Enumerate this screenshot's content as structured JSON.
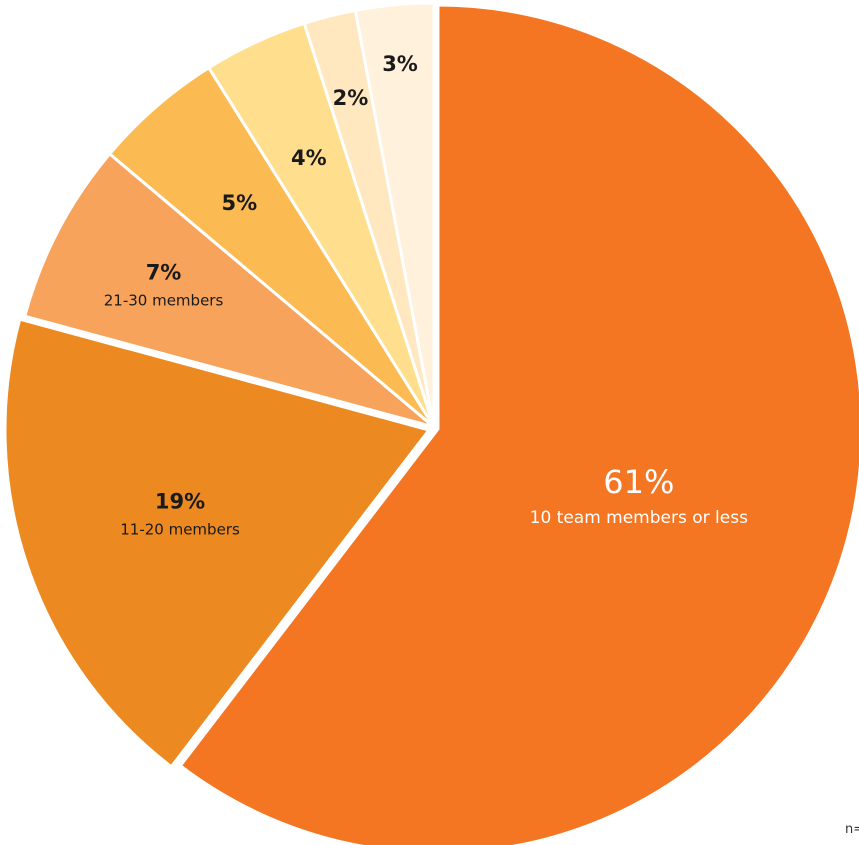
{
  "chart_data": {
    "type": "pie",
    "slices": [
      {
        "value": 61,
        "percent_label": "61%",
        "label": "10 team members or less",
        "color": "#F47623"
      },
      {
        "value": 19,
        "percent_label": "19%",
        "label": "11-20 members",
        "color": "#EC8A21"
      },
      {
        "value": 7,
        "percent_label": "7%",
        "label": "21-30 members",
        "color": "#F7A35C"
      },
      {
        "value": 5,
        "percent_label": "5%",
        "label": "",
        "color": "#FBBB52"
      },
      {
        "value": 4,
        "percent_label": "4%",
        "label": "",
        "color": "#FFDE8D"
      },
      {
        "value": 2,
        "percent_label": "2%",
        "label": "",
        "color": "#FFE8BF"
      },
      {
        "value": 3,
        "percent_label": "3%",
        "label": "",
        "color": "#FFF1DC"
      }
    ]
  },
  "footnote": "n="
}
